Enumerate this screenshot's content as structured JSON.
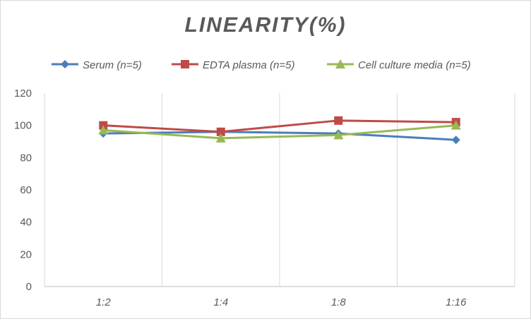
{
  "chart_data": {
    "type": "line",
    "title": "LINEARITY(%)",
    "categories": [
      "1:2",
      "1:4",
      "1:8",
      "1:16"
    ],
    "ylim": [
      0,
      120
    ],
    "yticks": [
      0,
      20,
      40,
      60,
      80,
      100,
      120
    ],
    "grid": "vertical",
    "legend": "top",
    "series": [
      {
        "name": "Serum (n=5)",
        "values": [
          95,
          96,
          95,
          91
        ],
        "color": "#4a7ebb",
        "marker": "diamond"
      },
      {
        "name": "EDTA plasma (n=5)",
        "values": [
          100,
          96,
          103,
          102
        ],
        "color": "#be4b48",
        "marker": "square"
      },
      {
        "name": "Cell culture media (n=5)",
        "values": [
          97,
          92,
          94,
          100
        ],
        "color": "#98b954",
        "marker": "triangle"
      }
    ]
  }
}
